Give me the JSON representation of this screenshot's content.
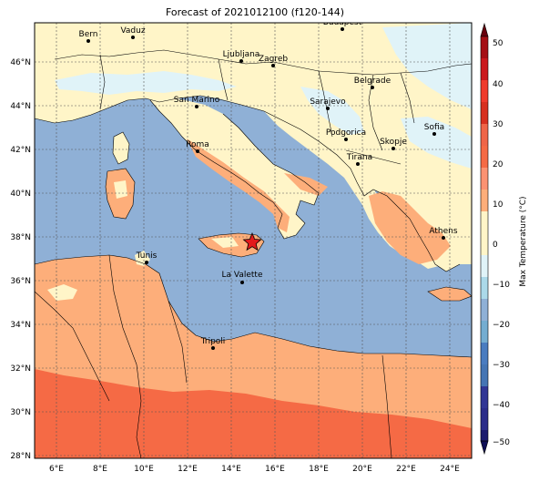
{
  "title": "Forecast of 2021012100 (f120-144)",
  "colorbar": {
    "label": "Max Temperature (°C)",
    "ticks": [
      "50",
      "40",
      "30",
      "20",
      "10",
      "0",
      "−10",
      "−20",
      "−30",
      "−40",
      "−50"
    ],
    "colors": [
      "#a50f15",
      "#cb181d",
      "#ef3b2c",
      "#fb6a4a",
      "#fc9272",
      "#fcbba1",
      "#fff5c8",
      "#e0f3f8",
      "#abd9e9",
      "#74add1",
      "#4575b4",
      "#313695",
      "#1a1a6e"
    ]
  },
  "axes": {
    "lon_ticks": [
      "6°E",
      "8°E",
      "10°E",
      "12°E",
      "14°E",
      "16°E",
      "18°E",
      "20°E",
      "22°E",
      "24°E"
    ],
    "lat_ticks": [
      "46°N",
      "44°N",
      "42°N",
      "40°N",
      "38°N",
      "36°N",
      "34°N",
      "32°N",
      "30°N",
      "28°N"
    ]
  },
  "cities": [
    {
      "name": "Bern"
    },
    {
      "name": "Vaduz"
    },
    {
      "name": "Budapest"
    },
    {
      "name": "Ljubljana"
    },
    {
      "name": "Zagreb"
    },
    {
      "name": "Belgrade"
    },
    {
      "name": "San Marino"
    },
    {
      "name": "Sarajevo"
    },
    {
      "name": "Sofia"
    },
    {
      "name": "Podgorica"
    },
    {
      "name": "Skopje"
    },
    {
      "name": "Roma"
    },
    {
      "name": "Tirana"
    },
    {
      "name": "Athens"
    },
    {
      "name": "Tunis"
    },
    {
      "name": "La Valette"
    },
    {
      "name": "Tripoli"
    }
  ],
  "colors": {
    "sea": "#8fb0d6",
    "cold_land": "#fff5c8",
    "mild": "#fdae7a",
    "warm": "#f56a45",
    "cool": "#e0f3f8",
    "marker": "#e31a1c"
  }
}
